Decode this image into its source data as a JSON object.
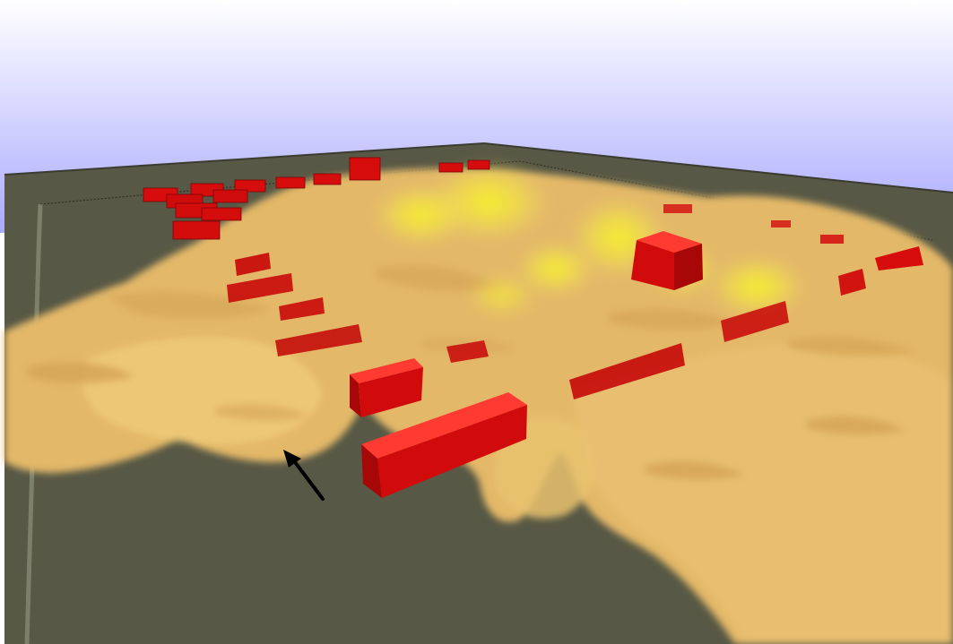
{
  "scene": {
    "colors": {
      "sky_bottom": "#a9a9ff",
      "sky_top": "#ffffff",
      "ground": "#575845",
      "plume_base": "#e8bd6a",
      "plume_hot": "#f5ef2f",
      "building": "#dd0c0c",
      "building_top": "#ff3a30",
      "building_dark": "#8a0606",
      "arrow": "#000000"
    },
    "icons": {
      "pointer": "arrow-icon"
    }
  }
}
